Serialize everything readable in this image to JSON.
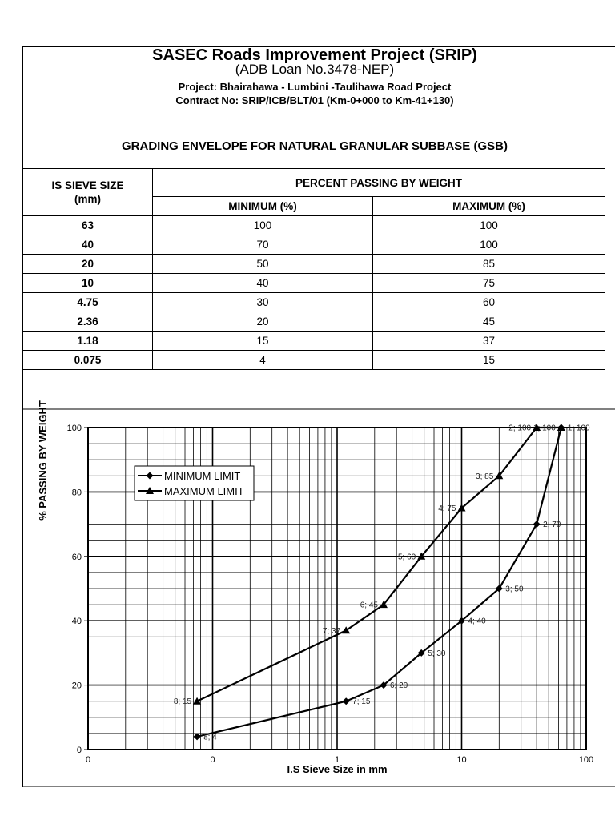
{
  "header": {
    "title": "SASEC Roads Improvement Project (SRIP)",
    "subtitle": "(ADB Loan No.3478-NEP)",
    "project": "Project: Bhairahawa - Lumbini -Taulihawa Road Project",
    "contract": "Contract No: SRIP/ICB/BLT/01 (Km-0+000 to Km-41+130)",
    "envelope_prefix": "GRADING ENVELOPE FOR ",
    "envelope_material": "NATURAL GRANULAR SUBBASE (GSB)"
  },
  "table": {
    "col_size": "IS SIEVE SIZE (mm)",
    "col_group": "PERCENT PASSING BY WEIGHT",
    "col_min": "MINIMUM (%)",
    "col_max": "MAXIMUM (%)",
    "rows": [
      {
        "size": "63",
        "min": "100",
        "max": "100"
      },
      {
        "size": "40",
        "min": "70",
        "max": "100"
      },
      {
        "size": "20",
        "min": "50",
        "max": "85"
      },
      {
        "size": "10",
        "min": "40",
        "max": "75"
      },
      {
        "size": "4.75",
        "min": "30",
        "max": "60"
      },
      {
        "size": "2.36",
        "min": "20",
        "max": "45"
      },
      {
        "size": "1.18",
        "min": "15",
        "max": "37"
      },
      {
        "size": "0.075",
        "min": "4",
        "max": "15"
      }
    ]
  },
  "chart_data": {
    "type": "line",
    "xscale": "log",
    "xlim": [
      0.01,
      100
    ],
    "ylim": [
      0,
      100
    ],
    "xlabel": "I.S Sieve Size in mm",
    "ylabel": "% PASSING BY WEIGHT",
    "x_ticks": [
      "0",
      "0",
      "1",
      "10",
      "100"
    ],
    "y_ticks": [
      "0",
      "20",
      "40",
      "60",
      "80",
      "100"
    ],
    "grid": true,
    "legend": "top-left",
    "x": [
      63,
      40,
      20,
      10,
      4.75,
      2.36,
      1.18,
      0.075
    ],
    "series": [
      {
        "name": "MINIMUM LIMIT",
        "marker": "diamond",
        "values": [
          100,
          70,
          50,
          40,
          30,
          20,
          15,
          4
        ],
        "labels": [
          "1; 100",
          "2; 70",
          "3; 50",
          "4; 40",
          "5; 30",
          "6; 20",
          "7; 15",
          "8; 4"
        ]
      },
      {
        "name": "MAXIMUM LIMIT",
        "marker": "triangle",
        "values": [
          100,
          100,
          85,
          75,
          60,
          45,
          37,
          15
        ],
        "labels": [
          "1; 100",
          "2; 100",
          "3; 85",
          "4; 75",
          "5; 60",
          "6; 45",
          "7; 37",
          "8; 15"
        ]
      }
    ]
  }
}
